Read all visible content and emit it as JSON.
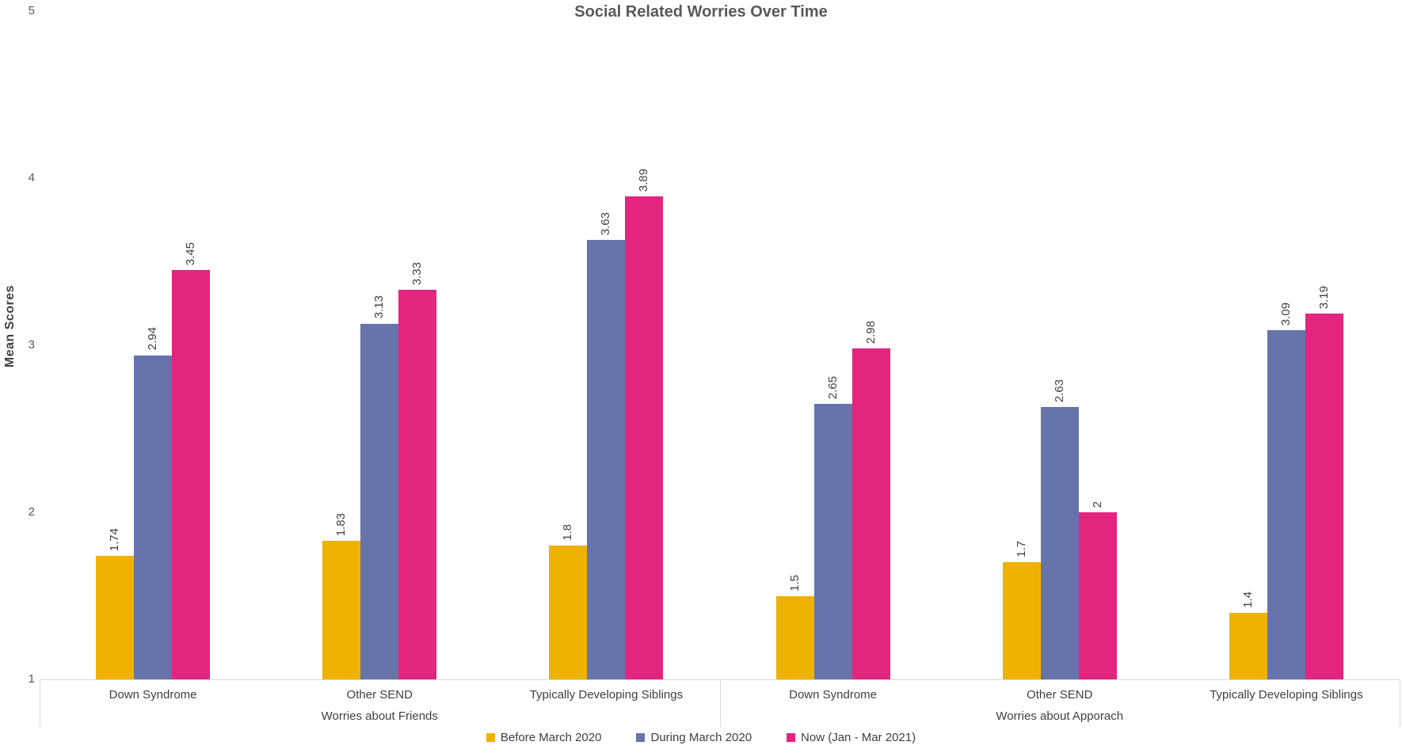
{
  "chart_data": {
    "type": "bar",
    "title": "Social Related Worries Over Time",
    "ylabel": "Mean Scores",
    "ylim": [
      1,
      5
    ],
    "yticks": [
      1,
      2,
      3,
      4,
      5
    ],
    "grid": false,
    "legend_position": "bottom",
    "value_labels_rotated": true,
    "series": [
      {
        "name": "Before March 2020",
        "color": "#F0B200"
      },
      {
        "name": "During March 2020",
        "color": "#6774AB"
      },
      {
        "name": "Now (Jan - Mar 2021)",
        "color": "#E3257F"
      }
    ],
    "sections": [
      {
        "label": "Worries about Friends",
        "groups": [
          {
            "label": "Down Syndrome",
            "values": [
              "1.74",
              "2.94",
              "3.45"
            ]
          },
          {
            "label": "Other SEND",
            "values": [
              "1.83",
              "3.13",
              "3.33"
            ]
          },
          {
            "label": "Typically Developing Siblings",
            "values": [
              "1.8",
              "3.63",
              "3.89"
            ]
          }
        ]
      },
      {
        "label": "Worries about Apporach",
        "groups": [
          {
            "label": "Down Syndrome",
            "values": [
              "1.5",
              "2.65",
              "2.98"
            ]
          },
          {
            "label": "Other SEND",
            "values": [
              "1.7",
              "2.63",
              "2"
            ]
          },
          {
            "label": "Typically Developing Siblings",
            "values": [
              "1.4",
              "3.09",
              "3.19"
            ]
          }
        ]
      }
    ],
    "colors": {
      "axis_line": "#d9d9d9",
      "tick_text": "#595959",
      "label_text": "#404040",
      "background": "#ffffff"
    }
  }
}
